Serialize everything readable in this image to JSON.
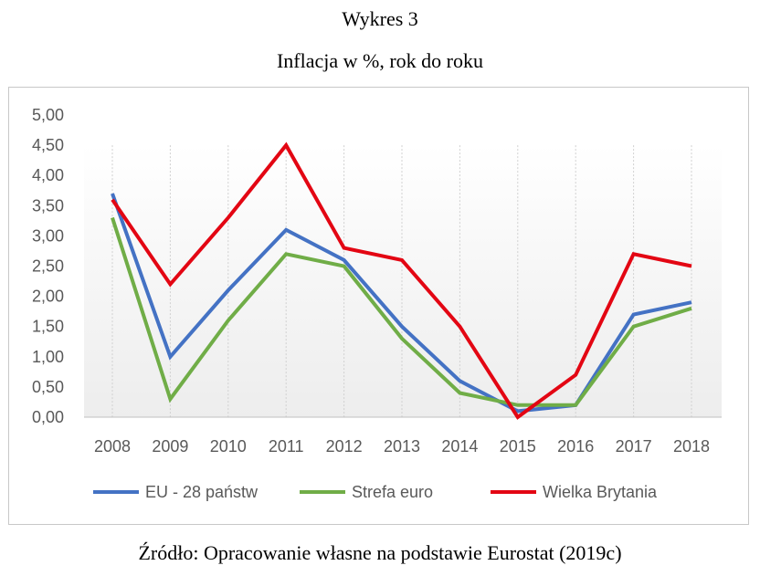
{
  "header": {
    "figure_number": "Wykres 3",
    "title": "Inflacja w %, rok do roku"
  },
  "footer": {
    "source": "Źródło: Opracowanie własne na podstawie Eurostat (2019c)"
  },
  "chart_data": {
    "type": "line",
    "title": "Inflacja w %, rok do roku",
    "xlabel": "",
    "ylabel": "",
    "x": [
      "2008",
      "2009",
      "2010",
      "2011",
      "2012",
      "2013",
      "2014",
      "2015",
      "2016",
      "2017",
      "2018"
    ],
    "ylim": [
      0,
      5
    ],
    "yticks": [
      0,
      0.5,
      1,
      1.5,
      2,
      2.5,
      3,
      3.5,
      4,
      4.5,
      5
    ],
    "ytick_labels": [
      "0,00",
      "0,50",
      "1,00",
      "1,50",
      "2,00",
      "2,50",
      "3,00",
      "3,50",
      "4,00",
      "4,50",
      "5,00"
    ],
    "grid": "vertical dashed",
    "legend": "bottom",
    "series": [
      {
        "name": "EU - 28 państw",
        "color": "#4472c4",
        "values": [
          3.7,
          1.0,
          2.1,
          3.1,
          2.6,
          1.5,
          0.6,
          0.1,
          0.2,
          1.7,
          1.9
        ]
      },
      {
        "name": "Strefa euro",
        "color": "#70ad47",
        "values": [
          3.3,
          0.3,
          1.6,
          2.7,
          2.5,
          1.3,
          0.4,
          0.2,
          0.2,
          1.5,
          1.8
        ]
      },
      {
        "name": "Wielka Brytania",
        "color": "#e30613",
        "values": [
          3.6,
          2.2,
          3.3,
          4.5,
          2.8,
          2.6,
          1.5,
          0.0,
          0.7,
          2.7,
          2.5
        ]
      }
    ]
  }
}
